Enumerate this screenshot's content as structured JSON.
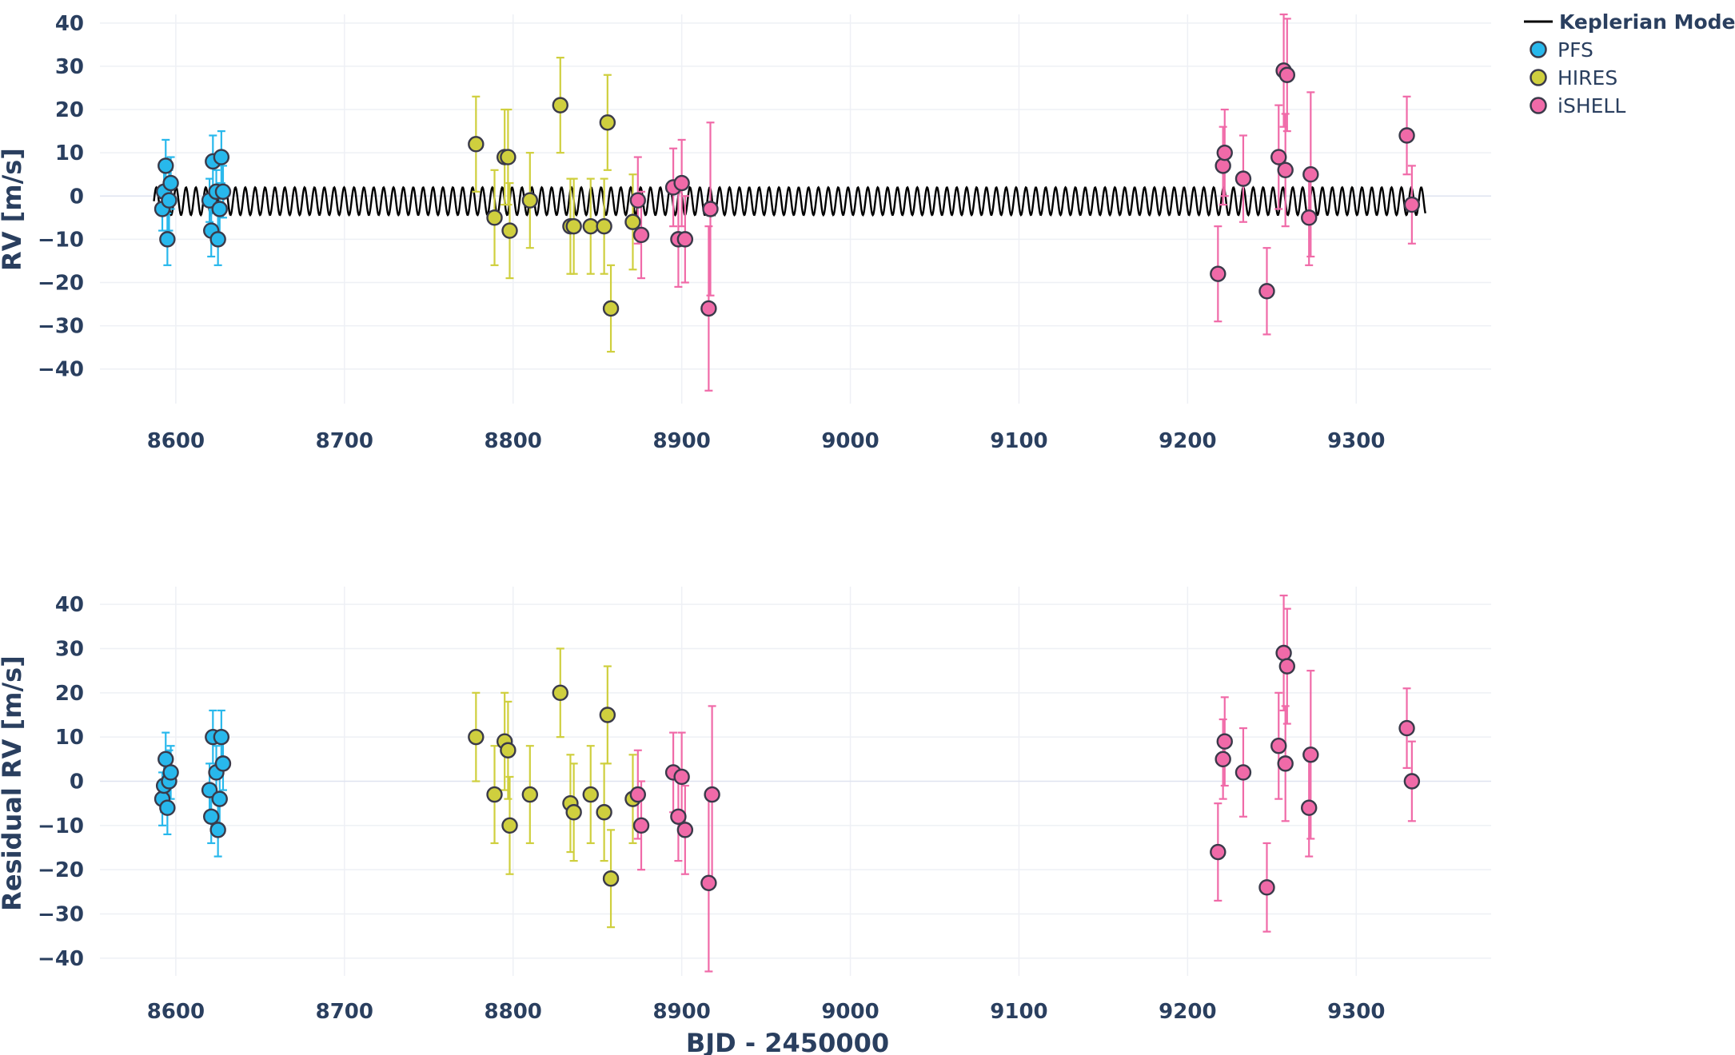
{
  "chart_data": [
    {
      "type": "scatter",
      "id": "rv",
      "ylabel": "RV [m/s]",
      "xlabel": "",
      "xlim": [
        8555,
        9380
      ],
      "ylim": [
        -48,
        42
      ],
      "xticks": [
        8600,
        8700,
        8800,
        8900,
        9000,
        9100,
        9200,
        9300
      ],
      "yticks": [
        40,
        30,
        20,
        10,
        0,
        -10,
        -20,
        -30,
        -40
      ],
      "model": {
        "name": "Keplerian Model",
        "x_start": 8587,
        "x_end": 9341,
        "period": 5.86,
        "amplitude": 3.2,
        "offset": -1.2,
        "color": "#000000"
      },
      "series": [
        {
          "name": "PFS",
          "color": "#28b8ec",
          "points": [
            [
              8592,
              -3,
              5
            ],
            [
              8593,
              1,
              5
            ],
            [
              8594,
              7,
              6
            ],
            [
              8595,
              -10,
              6
            ],
            [
              8596,
              -1,
              7
            ],
            [
              8597,
              3,
              6
            ],
            [
              8620,
              -1,
              5
            ],
            [
              8621,
              -8,
              6
            ],
            [
              8622,
              8,
              6
            ],
            [
              8624,
              1,
              5
            ],
            [
              8625,
              -10,
              6
            ],
            [
              8626,
              -3,
              6
            ],
            [
              8627,
              9,
              6
            ],
            [
              8628,
              1,
              6
            ]
          ]
        },
        {
          "name": "HIRES",
          "color": "#cfcf3e",
          "points": [
            [
              8778,
              12,
              11
            ],
            [
              8789,
              -5,
              11
            ],
            [
              8795,
              9,
              11
            ],
            [
              8797,
              9,
              11
            ],
            [
              8798,
              -8,
              11
            ],
            [
              8810,
              -1,
              11
            ],
            [
              8828,
              21,
              11
            ],
            [
              8834,
              -7,
              11
            ],
            [
              8836,
              -7,
              11
            ],
            [
              8846,
              -7,
              11
            ],
            [
              8854,
              -7,
              11
            ],
            [
              8856,
              17,
              11
            ],
            [
              8858,
              -26,
              10
            ],
            [
              8871,
              -6,
              11
            ]
          ]
        },
        {
          "name": "iSHELL",
          "color": "#f06aa8",
          "points": [
            [
              8874,
              -1,
              10
            ],
            [
              8876,
              -9,
              10
            ],
            [
              8895,
              2,
              9
            ],
            [
              8898,
              -10,
              11
            ],
            [
              8900,
              3,
              10
            ],
            [
              8902,
              -10,
              10
            ],
            [
              8917,
              -3,
              20
            ],
            [
              8916,
              -26,
              19
            ],
            [
              9218,
              -18,
              11
            ],
            [
              9221,
              7,
              9
            ],
            [
              9222,
              10,
              10
            ],
            [
              9233,
              4,
              10
            ],
            [
              9247,
              -22,
              10
            ],
            [
              9254,
              9,
              12
            ],
            [
              9257,
              29,
              13
            ],
            [
              9259,
              28,
              13
            ],
            [
              9258,
              6,
              13
            ],
            [
              9272,
              -5,
              11
            ],
            [
              9273,
              5,
              19
            ],
            [
              9330,
              14,
              9
            ],
            [
              9333,
              -2,
              9
            ]
          ]
        }
      ]
    },
    {
      "type": "scatter",
      "id": "residual",
      "ylabel": "Residual RV [m/s]",
      "xlabel": "BJD - 2450000",
      "xlim": [
        8555,
        9380
      ],
      "ylim": [
        -44,
        44
      ],
      "xticks": [
        8600,
        8700,
        8800,
        8900,
        9000,
        9100,
        9200,
        9300
      ],
      "yticks": [
        40,
        30,
        20,
        10,
        0,
        -10,
        -20,
        -30,
        -40
      ],
      "series": [
        {
          "name": "PFS",
          "color": "#28b8ec",
          "points": [
            [
              8592,
              -4,
              6
            ],
            [
              8593,
              -1,
              6
            ],
            [
              8594,
              5,
              6
            ],
            [
              8595,
              -6,
              6
            ],
            [
              8596,
              0,
              7
            ],
            [
              8597,
              2,
              6
            ],
            [
              8620,
              -2,
              6
            ],
            [
              8621,
              -8,
              6
            ],
            [
              8622,
              10,
              6
            ],
            [
              8624,
              2,
              6
            ],
            [
              8625,
              -11,
              6
            ],
            [
              8626,
              -4,
              6
            ],
            [
              8627,
              10,
              6
            ],
            [
              8628,
              4,
              6
            ]
          ]
        },
        {
          "name": "HIRES",
          "color": "#cfcf3e",
          "points": [
            [
              8778,
              10,
              10
            ],
            [
              8789,
              -3,
              11
            ],
            [
              8795,
              9,
              11
            ],
            [
              8797,
              7,
              11
            ],
            [
              8798,
              -10,
              11
            ],
            [
              8810,
              -3,
              11
            ],
            [
              8828,
              20,
              10
            ],
            [
              8834,
              -5,
              11
            ],
            [
              8836,
              -7,
              11
            ],
            [
              8846,
              -3,
              11
            ],
            [
              8854,
              -7,
              11
            ],
            [
              8856,
              15,
              11
            ],
            [
              8858,
              -22,
              11
            ],
            [
              8871,
              -4,
              10
            ]
          ]
        },
        {
          "name": "iSHELL",
          "color": "#f06aa8",
          "points": [
            [
              8874,
              -3,
              10
            ],
            [
              8876,
              -10,
              10
            ],
            [
              8895,
              2,
              9
            ],
            [
              8898,
              -8,
              10
            ],
            [
              8900,
              1,
              10
            ],
            [
              8902,
              -11,
              10
            ],
            [
              8916,
              -23,
              20
            ],
            [
              8918,
              -3,
              20
            ],
            [
              9218,
              -16,
              11
            ],
            [
              9221,
              5,
              9
            ],
            [
              9222,
              9,
              10
            ],
            [
              9233,
              2,
              10
            ],
            [
              9247,
              -24,
              10
            ],
            [
              9254,
              8,
              12
            ],
            [
              9257,
              29,
              13
            ],
            [
              9259,
              26,
              13
            ],
            [
              9258,
              4,
              13
            ],
            [
              9272,
              -6,
              11
            ],
            [
              9273,
              6,
              19
            ],
            [
              9330,
              12,
              9
            ],
            [
              9333,
              0,
              9
            ]
          ]
        }
      ]
    }
  ],
  "legend": {
    "placement": "top-right",
    "items": [
      {
        "label": "Keplerian Model",
        "kind": "line",
        "color": "#000000"
      },
      {
        "label": "PFS",
        "kind": "marker",
        "color": "#28b8ec"
      },
      {
        "label": "HIRES",
        "kind": "marker",
        "color": "#cfcf3e"
      },
      {
        "label": "iSHELL",
        "kind": "marker",
        "color": "#f06aa8"
      }
    ]
  },
  "colors": {
    "text": "#2a3f5f",
    "grid": "#eef0f5",
    "marker_edge": "#3a3a4a"
  }
}
